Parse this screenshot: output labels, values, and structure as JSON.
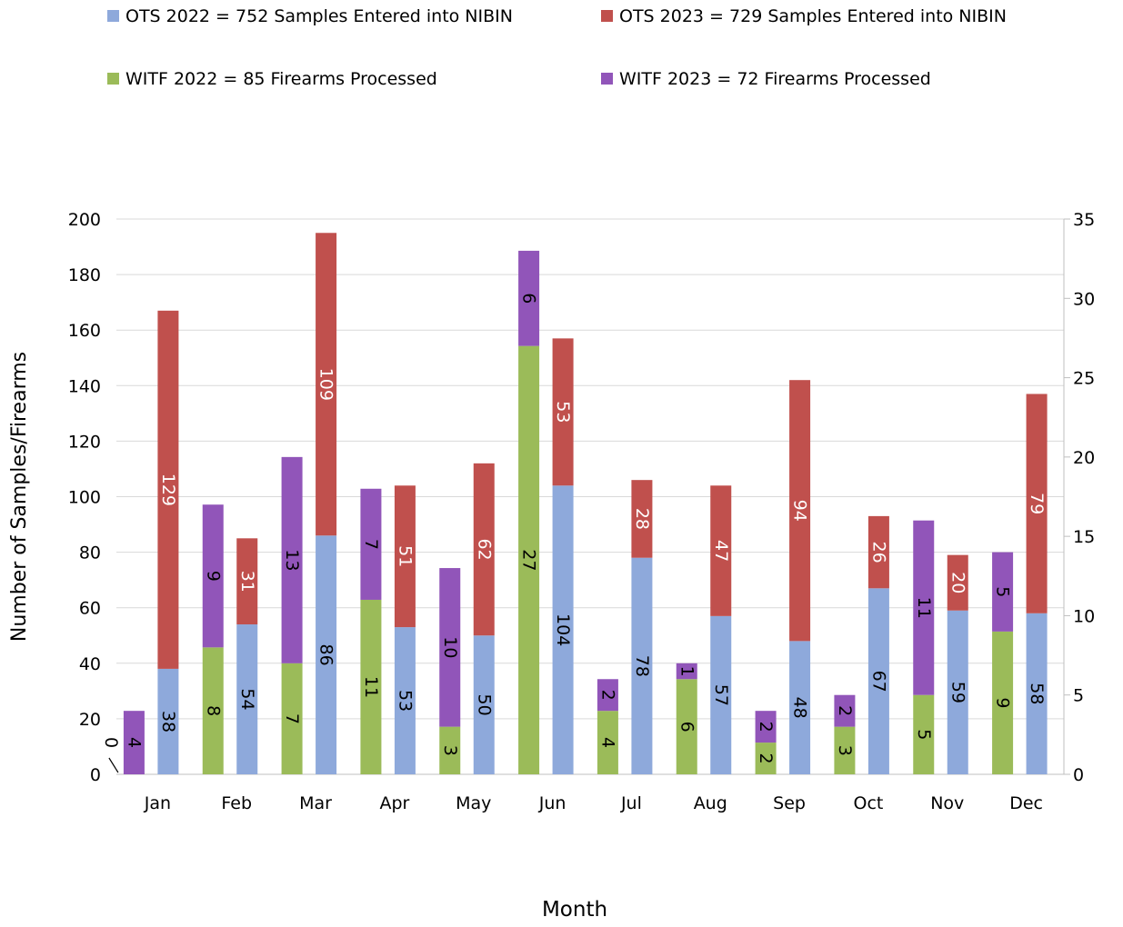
{
  "chart_data": {
    "type": "bar",
    "subtype": "stacked-grouped, dual y-axis",
    "xlabel": "Month",
    "ylabel": "Number of Samples/Firearms",
    "categories": [
      "Jan",
      "Feb",
      "Mar",
      "Apr",
      "May",
      "Jun",
      "Jul",
      "Aug",
      "Sep",
      "Oct",
      "Nov",
      "Dec"
    ],
    "y_left": {
      "min": 0,
      "max": 200,
      "step": 20
    },
    "y_right": {
      "min": 0,
      "max": 35,
      "step": 5
    },
    "grid": true,
    "legend_position": "top",
    "series": [
      {
        "name": "OTS 2022 = 752 Samples Entered into NIBIN",
        "axis": "left",
        "stack": "ots",
        "color": "#8EA9DB",
        "label_color": "#000000",
        "values": [
          38,
          54,
          86,
          53,
          50,
          104,
          78,
          57,
          48,
          67,
          59,
          58
        ]
      },
      {
        "name": "OTS 2023 = 729 Samples Entered into NIBIN",
        "axis": "left",
        "stack": "ots",
        "color": "#C0504D",
        "label_color": "#ffffff",
        "values": [
          129,
          31,
          109,
          51,
          62,
          53,
          28,
          47,
          94,
          26,
          20,
          79
        ]
      },
      {
        "name": "WITF 2022 = 85 Firearms Processed",
        "axis": "right",
        "stack": "witf",
        "color": "#9BBB59",
        "label_color": "#000000",
        "values": [
          0,
          8,
          7,
          11,
          3,
          27,
          4,
          6,
          2,
          3,
          5,
          9
        ]
      },
      {
        "name": "WITF 2023 = 72 Firearms Processed",
        "axis": "right",
        "stack": "witf",
        "color": "#9155B9",
        "label_color": "#000000",
        "values": [
          4,
          9,
          13,
          7,
          10,
          6,
          2,
          1,
          2,
          2,
          11,
          5
        ]
      }
    ]
  }
}
